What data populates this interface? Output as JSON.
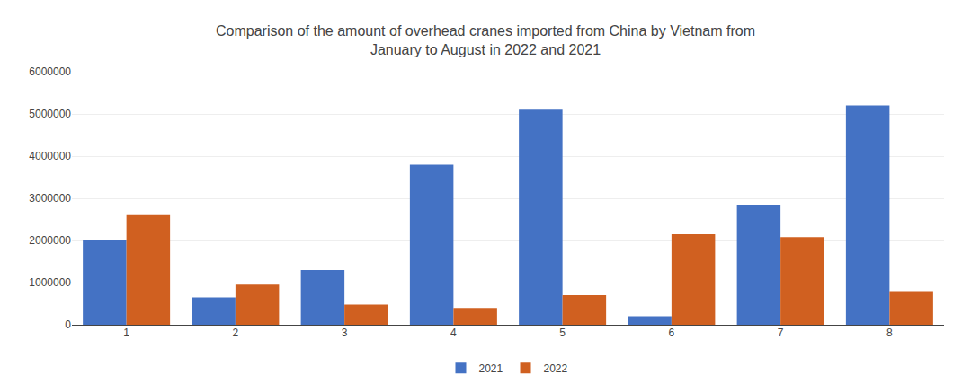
{
  "chart_data": {
    "type": "bar",
    "title": "Comparison of the amount of overhead cranes imported from China by Vietnam from\nJanuary to August in 2022 and 2021",
    "categories": [
      "1",
      "2",
      "3",
      "4",
      "5",
      "6",
      "7",
      "8"
    ],
    "series": [
      {
        "name": "2021",
        "color": "#4472C4",
        "values": [
          2000000,
          650000,
          1300000,
          3800000,
          5100000,
          200000,
          2850000,
          5200000
        ]
      },
      {
        "name": "2022",
        "color": "#D06020",
        "values": [
          2600000,
          950000,
          480000,
          400000,
          700000,
          2150000,
          2080000,
          800000
        ]
      }
    ],
    "ylim": [
      0,
      6000000
    ],
    "yticks": [
      0,
      1000000,
      2000000,
      3000000,
      4000000,
      5000000,
      6000000
    ],
    "grid": true,
    "legend": "bottom"
  }
}
